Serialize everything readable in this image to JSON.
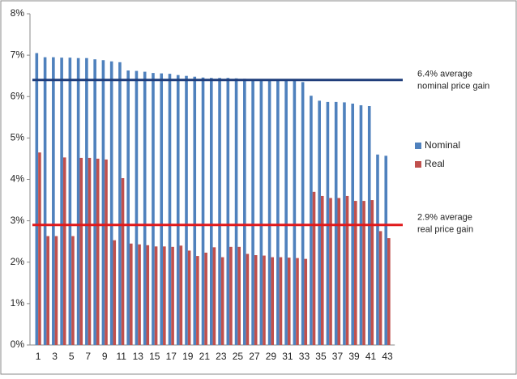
{
  "chart_data": {
    "type": "bar",
    "categories": [
      "1",
      null,
      "3",
      null,
      "5",
      null,
      "7",
      null,
      "9",
      null,
      "11",
      null,
      "13",
      null,
      "15",
      null,
      "17",
      null,
      "19",
      null,
      "21",
      null,
      "23",
      null,
      "25",
      null,
      "27",
      null,
      "29",
      null,
      "31",
      null,
      "33",
      null,
      "35",
      null,
      "37",
      null,
      "39",
      null,
      "41",
      null,
      "43"
    ],
    "series": [
      {
        "name": "Nominal",
        "color": "#4f81bd",
        "values": [
          7.05,
          6.95,
          6.95,
          6.94,
          6.94,
          6.93,
          6.93,
          6.9,
          6.88,
          6.85,
          6.83,
          6.63,
          6.62,
          6.6,
          6.57,
          6.56,
          6.55,
          6.52,
          6.5,
          6.48,
          6.46,
          6.45,
          6.45,
          6.45,
          6.44,
          6.43,
          6.42,
          6.41,
          6.4,
          6.4,
          6.39,
          6.38,
          6.35,
          6.02,
          5.9,
          5.87,
          5.87,
          5.86,
          5.83,
          5.79,
          5.77,
          4.6,
          4.57
        ]
      },
      {
        "name": "Real",
        "color": "#c0504d",
        "values": [
          4.65,
          2.63,
          2.63,
          4.53,
          2.63,
          4.52,
          4.52,
          4.5,
          4.48,
          2.53,
          4.03,
          2.45,
          2.43,
          2.41,
          2.38,
          2.38,
          2.37,
          2.4,
          2.28,
          2.15,
          2.23,
          2.36,
          2.12,
          2.37,
          2.37,
          2.2,
          2.17,
          2.16,
          2.12,
          2.12,
          2.11,
          2.1,
          2.08,
          3.7,
          3.6,
          3.55,
          3.55,
          3.6,
          3.48,
          3.48,
          3.5,
          2.75,
          2.58
        ]
      }
    ],
    "ylim": [
      0,
      8
    ],
    "yticks": [
      {
        "value": 0,
        "label": "0%"
      },
      {
        "value": 1,
        "label": "1%"
      },
      {
        "value": 2,
        "label": "2%"
      },
      {
        "value": 3,
        "label": "3%"
      },
      {
        "value": 4,
        "label": "4%"
      },
      {
        "value": 5,
        "label": "5%"
      },
      {
        "value": 6,
        "label": "6%"
      },
      {
        "value": 7,
        "label": "7%"
      },
      {
        "value": 8,
        "label": "8%"
      }
    ],
    "reference_lines": [
      {
        "value": 6.4,
        "color": "#1f3d7a",
        "label": [
          "6.4% average",
          "nominal price gain"
        ]
      },
      {
        "value": 2.9,
        "color": "#e0191b",
        "label": [
          "2.9% average",
          "real price gain"
        ]
      }
    ],
    "legend": "right"
  }
}
